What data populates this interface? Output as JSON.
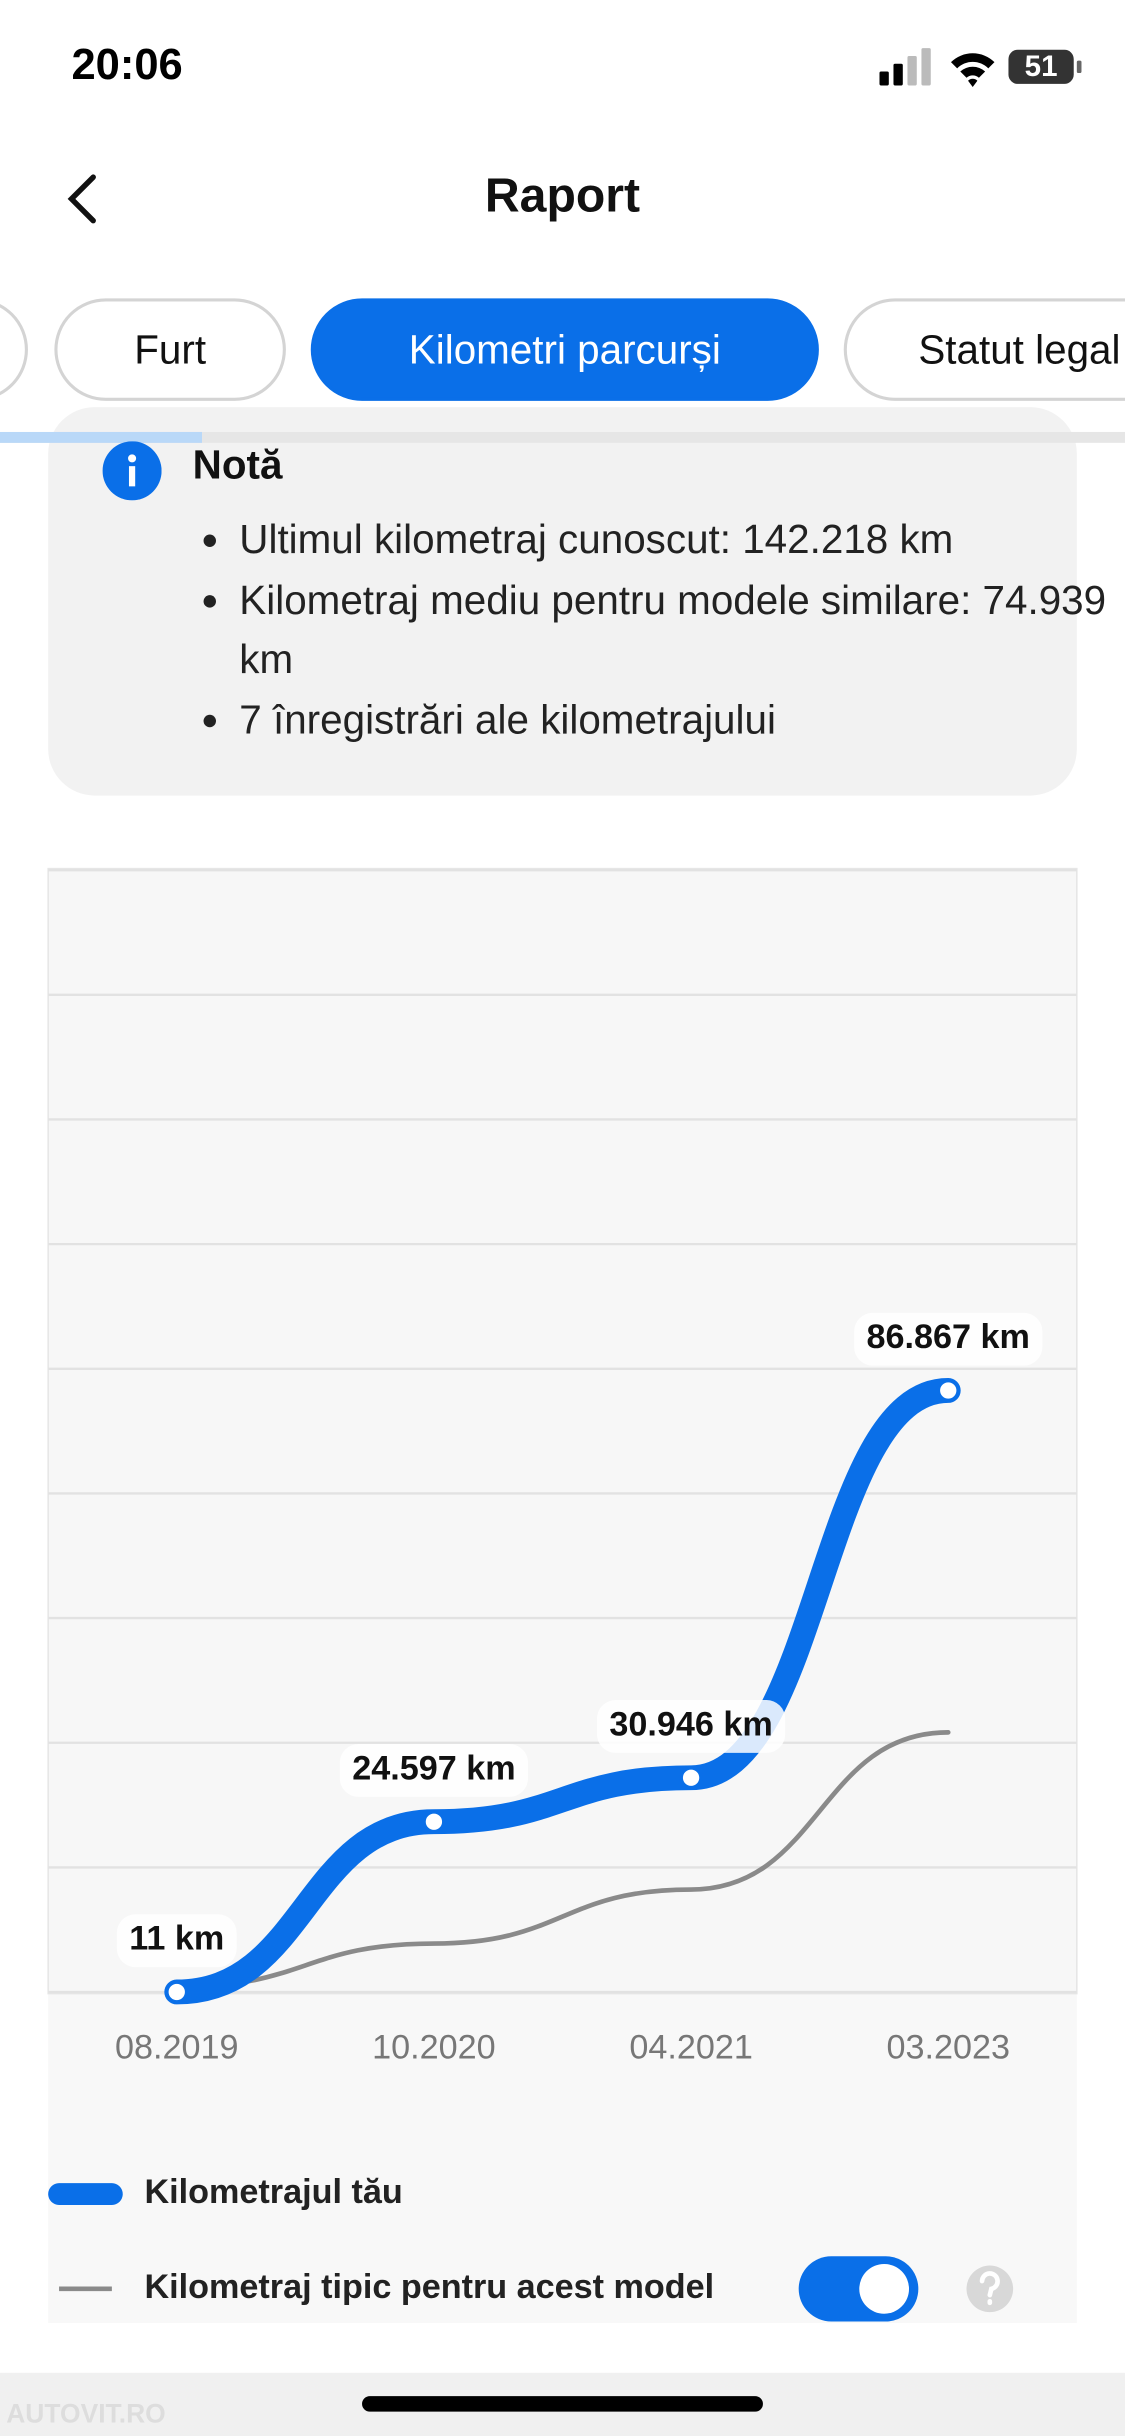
{
  "status_bar": {
    "time": "20:06",
    "battery": "51"
  },
  "header": {
    "title": "Raport"
  },
  "tabs": [
    "Furt",
    "Kilometri parcurși",
    "Statut legal"
  ],
  "note": {
    "title": "Notă",
    "items": [
      "Ultimul kilometraj cunoscut: 142.218 km",
      "Kilometraj mediu pentru modele similare: 74.939 km",
      "7 înregistrări ale kilometrajului"
    ]
  },
  "chart_data": {
    "type": "line",
    "categories": [
      "08.2019",
      "10.2020",
      "04.2021",
      "03.2023"
    ],
    "series": [
      {
        "name": "Kilometrajul tău",
        "color": "#0a6fe8",
        "values": [
          11,
          24597,
          30946,
          86867
        ],
        "value_labels": [
          "11 km",
          "24.597 km",
          "30.946 km",
          "86.867 km"
        ]
      },
      {
        "name": "Kilometraj tipic pentru acest model",
        "color": "#8a8a8a",
        "values": [
          700,
          7000,
          14800,
          37500
        ]
      }
    ],
    "ylim": [
      0,
      162000
    ],
    "yticks": [
      0,
      18000,
      36000,
      54000,
      72000,
      90000,
      108000,
      126000,
      144000,
      162000
    ],
    "grid": true
  },
  "watermark": "AUTOVIT.RO"
}
